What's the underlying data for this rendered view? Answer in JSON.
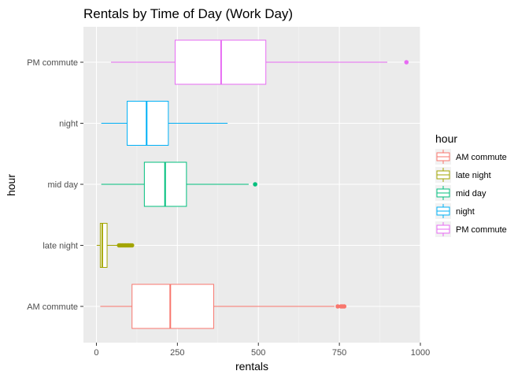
{
  "chart_data": {
    "type": "boxplot",
    "orientation": "horizontal",
    "title": "Rentals by Time of Day (Work Day)",
    "xlabel": "rentals",
    "ylabel": "hour",
    "xlim": [
      -40,
      1000
    ],
    "x_ticks": [
      0,
      250,
      500,
      750,
      1000
    ],
    "x_tick_labels": [
      "0",
      "250",
      "500",
      "750",
      "1000"
    ],
    "grid": true,
    "legend": {
      "title": "hour",
      "placement": "right",
      "entries": [
        "AM commute",
        "late night",
        "mid day",
        "night",
        "PM commute"
      ]
    },
    "categories": [
      "AM commute",
      "late night",
      "mid day",
      "night",
      "PM commute"
    ],
    "series": [
      {
        "name": "AM commute",
        "color": "#F8766D",
        "whisker_low": 12,
        "q1": 110,
        "median": 228,
        "q3": 362,
        "whisker_high": 735,
        "outliers": [
          745,
          755,
          760,
          765
        ]
      },
      {
        "name": "late night",
        "color": "#A3A500",
        "whisker_low": 1,
        "q1": 12,
        "median": 18,
        "q3": 33,
        "whisker_high": 66,
        "outliers": [
          70,
          75,
          80,
          85,
          90,
          95,
          100,
          105,
          110
        ]
      },
      {
        "name": "mid day",
        "color": "#00BF7D",
        "whisker_low": 15,
        "q1": 148,
        "median": 212,
        "q3": 278,
        "whisker_high": 470,
        "outliers": [
          490
        ]
      },
      {
        "name": "night",
        "color": "#00B0F6",
        "whisker_low": 15,
        "q1": 95,
        "median": 155,
        "q3": 222,
        "whisker_high": 405,
        "outliers": []
      },
      {
        "name": "PM commute",
        "color": "#E76BF3",
        "whisker_low": 45,
        "q1": 243,
        "median": 385,
        "q3": 523,
        "whisker_high": 898,
        "outliers": [
          957
        ]
      }
    ]
  }
}
